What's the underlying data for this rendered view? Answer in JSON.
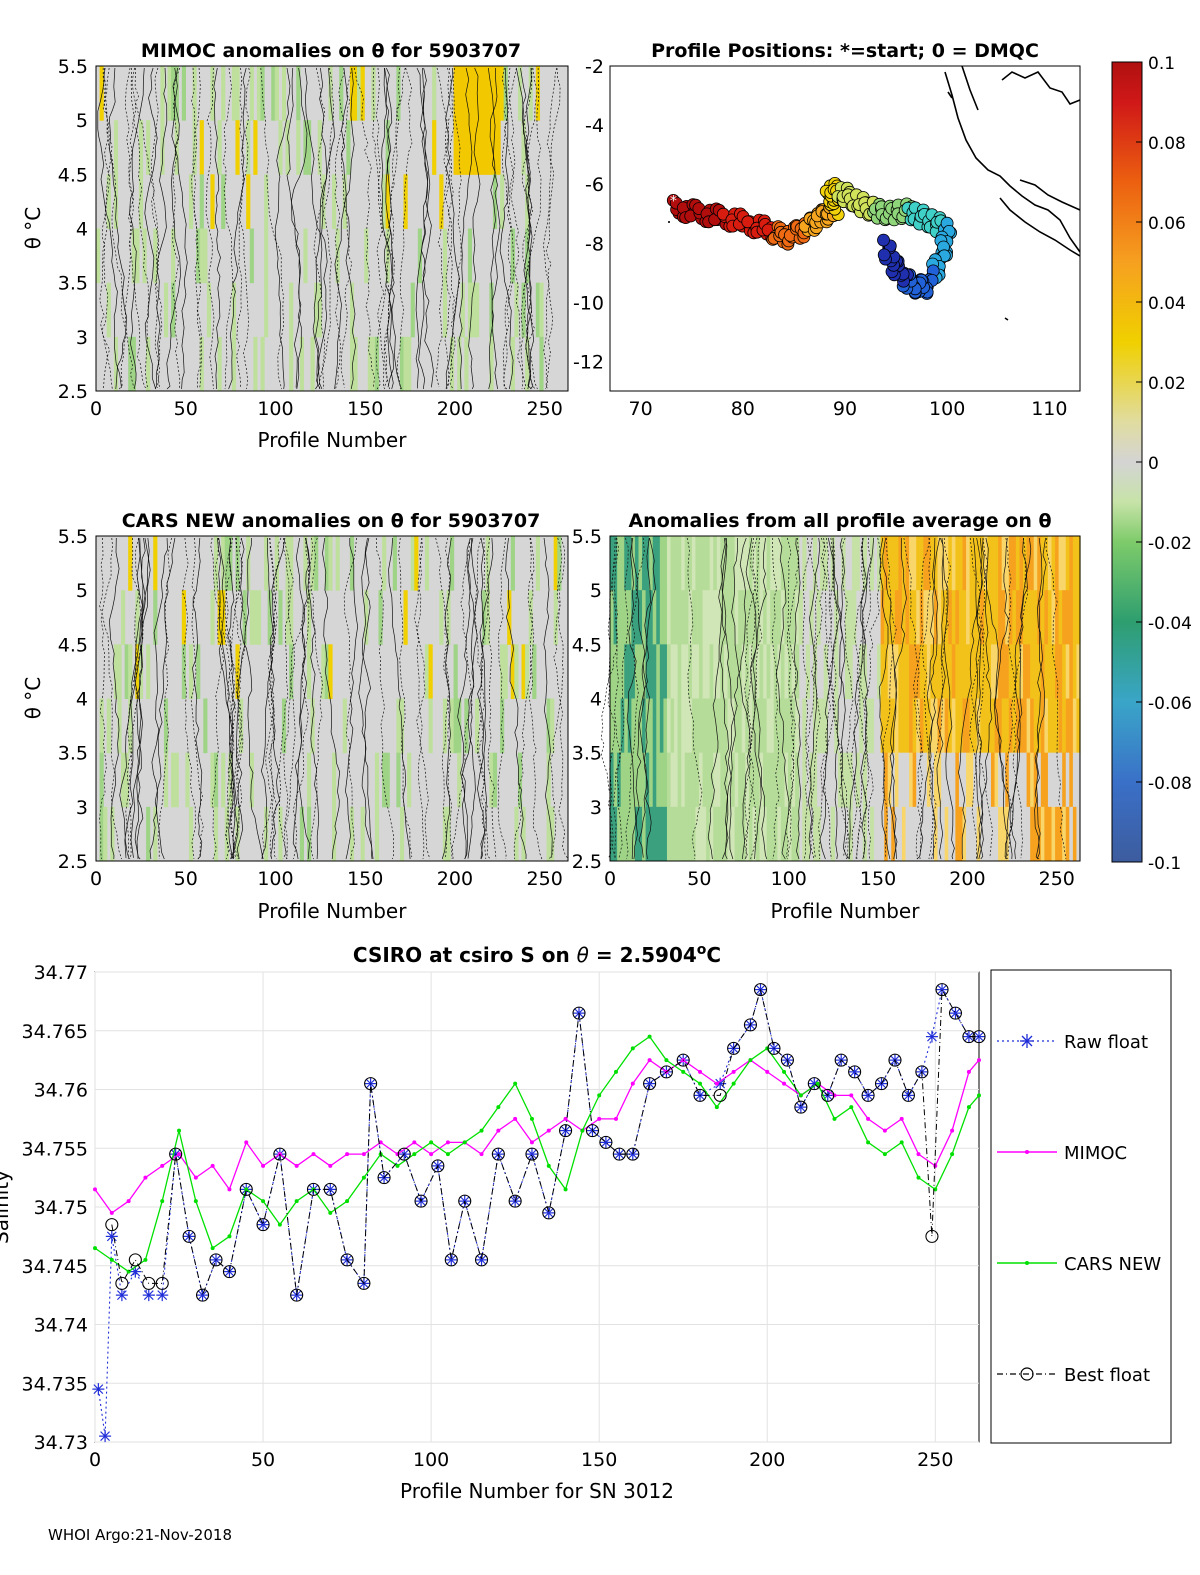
{
  "footer": "WHOI Argo:21-Nov-2018",
  "colorbar": {
    "ticks": [
      "0.1",
      "0.08",
      "0.06",
      "0.04",
      "0.02",
      "0",
      "-0.02",
      "-0.04",
      "-0.06",
      "-0.08",
      "-0.1"
    ],
    "range": [
      -0.1,
      0.1
    ]
  },
  "chart_data": [
    {
      "type": "heatmap",
      "title": "MIMOC anomalies on θ  for 5903707",
      "xlabel": "Profile Number",
      "ylabel": "θ °C",
      "xticks": [
        "0",
        "50",
        "100",
        "150",
        "200",
        "250"
      ],
      "yticks": [
        "5.5",
        "5",
        "4.5",
        "4",
        "3.5",
        "3",
        "2.5"
      ],
      "xlim": [
        0,
        263
      ],
      "ylim": [
        2.5,
        5.5
      ]
    },
    {
      "type": "scatter",
      "title": "Profile Positions: *=start; 0 = DMQC",
      "xticks": [
        "70",
        "80",
        "90",
        "100",
        "110"
      ],
      "yticks": [
        "-2",
        "-4",
        "-6",
        "-8",
        "-10",
        "-12"
      ],
      "xlim": [
        67,
        113
      ],
      "ylim": [
        -13,
        -2
      ],
      "track_waypoints_lon": [
        73.2,
        76,
        79,
        82,
        84,
        86,
        87.5,
        89,
        88.5,
        90,
        92,
        94,
        96,
        98,
        100,
        99.5,
        98,
        96.5,
        95,
        94
      ],
      "track_waypoints_lat": [
        -6.8,
        -7,
        -7.2,
        -7.5,
        -7.8,
        -7.5,
        -7.1,
        -6.8,
        -6.2,
        -6.4,
        -6.8,
        -7,
        -6.9,
        -7.2,
        -7.5,
        -8.5,
        -9.5,
        -9.4,
        -8.8,
        -8.1
      ]
    },
    {
      "type": "heatmap",
      "title": "CARS NEW anomalies on θ for 5903707",
      "xlabel": "Profile Number",
      "ylabel": "θ °C",
      "xticks": [
        "0",
        "50",
        "100",
        "150",
        "200",
        "250"
      ],
      "yticks": [
        "5.5",
        "5",
        "4.5",
        "4",
        "3.5",
        "3",
        "2.5"
      ],
      "xlim": [
        0,
        263
      ],
      "ylim": [
        2.5,
        5.5
      ]
    },
    {
      "type": "heatmap",
      "title": "Anomalies from all profile average on θ",
      "xlabel": "Profile Number",
      "xticks": [
        "0",
        "50",
        "100",
        "150",
        "200",
        "250"
      ],
      "yticks": [
        "5.5",
        "5",
        "4.5",
        "4",
        "3.5",
        "3",
        "2.5"
      ],
      "xlim": [
        0,
        263
      ],
      "ylim": [
        2.5,
        5.5
      ]
    },
    {
      "type": "line",
      "title": "CSIRO at csiro S on θ = 2.5904°C",
      "xlabel": "Profile Number for SN 3012",
      "ylabel": "Salinity",
      "xlim": [
        0,
        263
      ],
      "ylim": [
        34.73,
        34.77
      ],
      "xticks": [
        "0",
        "50",
        "100",
        "150",
        "200",
        "250"
      ],
      "yticks": [
        "34.73",
        "34.735",
        "34.74",
        "34.745",
        "34.75",
        "34.755",
        "34.76",
        "34.765",
        "34.77"
      ],
      "legend": [
        "Raw float",
        "MIMOC",
        "CARS NEW",
        "Best float"
      ],
      "legend_placement": "outside-right",
      "series": [
        {
          "name": "Raw float",
          "x": [
            1,
            3,
            5,
            8,
            12,
            16,
            20,
            24,
            28,
            32,
            36,
            40,
            45,
            50,
            55,
            60,
            65,
            70,
            75,
            80,
            82,
            86,
            92,
            97,
            102,
            106,
            110,
            115,
            120,
            125,
            130,
            135,
            140,
            144,
            148,
            152,
            156,
            160,
            165,
            170,
            175,
            180,
            186,
            190,
            195,
            198,
            202,
            206,
            210,
            214,
            218,
            222,
            226,
            230,
            234,
            238,
            242,
            246,
            249,
            252,
            256,
            260,
            263
          ],
          "values": [
            34.7345,
            34.7305,
            34.7475,
            34.7425,
            34.7445,
            34.7425,
            34.7425,
            34.7545,
            34.7475,
            34.7425,
            34.7455,
            34.7445,
            34.7515,
            34.7485,
            34.7545,
            34.7425,
            34.7515,
            34.7515,
            34.7455,
            34.7435,
            34.7605,
            34.7525,
            34.7545,
            34.7505,
            34.7535,
            34.7455,
            34.7505,
            34.7455,
            34.7545,
            34.7505,
            34.7545,
            34.7495,
            34.7565,
            34.7665,
            34.7565,
            34.7555,
            34.7545,
            34.7545,
            34.7605,
            34.7615,
            34.7625,
            34.7595,
            34.7605,
            34.7635,
            34.7655,
            34.7685,
            34.7635,
            34.7625,
            34.7585,
            34.7605,
            34.7595,
            34.7625,
            34.7615,
            34.7595,
            34.7605,
            34.7625,
            34.7595,
            34.7615,
            34.7645,
            34.7685,
            34.7665,
            34.7645,
            34.7645
          ]
        },
        {
          "name": "MIMOC",
          "x": [
            0,
            5,
            10,
            15,
            20,
            25,
            30,
            35,
            40,
            45,
            50,
            55,
            60,
            65,
            70,
            75,
            80,
            85,
            90,
            95,
            100,
            105,
            110,
            115,
            120,
            125,
            130,
            135,
            140,
            145,
            150,
            155,
            160,
            165,
            170,
            175,
            180,
            185,
            190,
            195,
            200,
            205,
            210,
            215,
            220,
            225,
            230,
            235,
            240,
            245,
            250,
            255,
            260,
            263
          ],
          "values": [
            34.7515,
            34.7495,
            34.7505,
            34.7525,
            34.7535,
            34.7545,
            34.7525,
            34.7535,
            34.7515,
            34.7555,
            34.7535,
            34.7545,
            34.7535,
            34.7545,
            34.7535,
            34.7545,
            34.7545,
            34.7555,
            34.7545,
            34.7555,
            34.7545,
            34.7555,
            34.7555,
            34.7545,
            34.7565,
            34.7575,
            34.7555,
            34.7565,
            34.7575,
            34.7565,
            34.7575,
            34.7575,
            34.7605,
            34.7625,
            34.7615,
            34.7625,
            34.7615,
            34.7605,
            34.7615,
            34.7625,
            34.7615,
            34.7605,
            34.7595,
            34.7605,
            34.7595,
            34.7595,
            34.7575,
            34.7565,
            34.7575,
            34.7545,
            34.7535,
            34.7565,
            34.7615,
            34.7625
          ]
        },
        {
          "name": "CARS NEW",
          "x": [
            0,
            5,
            10,
            15,
            20,
            25,
            30,
            35,
            40,
            45,
            50,
            55,
            60,
            65,
            70,
            75,
            80,
            85,
            90,
            95,
            100,
            105,
            110,
            115,
            120,
            125,
            130,
            135,
            140,
            145,
            150,
            155,
            160,
            165,
            170,
            175,
            180,
            185,
            190,
            195,
            200,
            205,
            210,
            215,
            220,
            225,
            230,
            235,
            240,
            245,
            250,
            255,
            260,
            263
          ],
          "values": [
            34.7465,
            34.7455,
            34.7445,
            34.7455,
            34.7505,
            34.7565,
            34.7505,
            34.7465,
            34.7475,
            34.7515,
            34.7505,
            34.7485,
            34.7505,
            34.7515,
            34.7495,
            34.7505,
            34.7525,
            34.7545,
            34.7535,
            34.7545,
            34.7555,
            34.7545,
            34.7555,
            34.7565,
            34.7585,
            34.7605,
            34.7575,
            34.7535,
            34.7515,
            34.7565,
            34.7595,
            34.7615,
            34.7635,
            34.7645,
            34.7625,
            34.7615,
            34.7605,
            34.7585,
            34.7605,
            34.7625,
            34.7635,
            34.7615,
            34.7595,
            34.7605,
            34.7575,
            34.7585,
            34.7555,
            34.7545,
            34.7555,
            34.7525,
            34.7515,
            34.7545,
            34.7585,
            34.7595
          ]
        },
        {
          "name": "Best float",
          "x": [
            5,
            8,
            12,
            16,
            20,
            24,
            28,
            32,
            36,
            40,
            45,
            50,
            55,
            60,
            65,
            70,
            75,
            80,
            82,
            86,
            92,
            97,
            102,
            106,
            110,
            115,
            120,
            125,
            130,
            135,
            140,
            144,
            148,
            152,
            156,
            160,
            165,
            170,
            175,
            180,
            186,
            190,
            195,
            198,
            202,
            206,
            210,
            214,
            218,
            222,
            226,
            230,
            234,
            238,
            242,
            246,
            249,
            252,
            256,
            260,
            263
          ],
          "values": [
            34.7485,
            34.7435,
            34.7455,
            34.7435,
            34.7435,
            34.7545,
            34.7475,
            34.7425,
            34.7455,
            34.7445,
            34.7515,
            34.7485,
            34.7545,
            34.7425,
            34.7515,
            34.7515,
            34.7455,
            34.7435,
            34.7605,
            34.7525,
            34.7545,
            34.7505,
            34.7535,
            34.7455,
            34.7505,
            34.7455,
            34.7545,
            34.7505,
            34.7545,
            34.7495,
            34.7565,
            34.7665,
            34.7565,
            34.7555,
            34.7545,
            34.7545,
            34.7605,
            34.7615,
            34.7625,
            34.7595,
            34.7595,
            34.7635,
            34.7655,
            34.7685,
            34.7635,
            34.7625,
            34.7585,
            34.7605,
            34.7595,
            34.7625,
            34.7615,
            34.7595,
            34.7605,
            34.7625,
            34.7595,
            34.7615,
            34.7475,
            34.7685,
            34.7665,
            34.7645,
            34.7645
          ]
        }
      ]
    }
  ]
}
